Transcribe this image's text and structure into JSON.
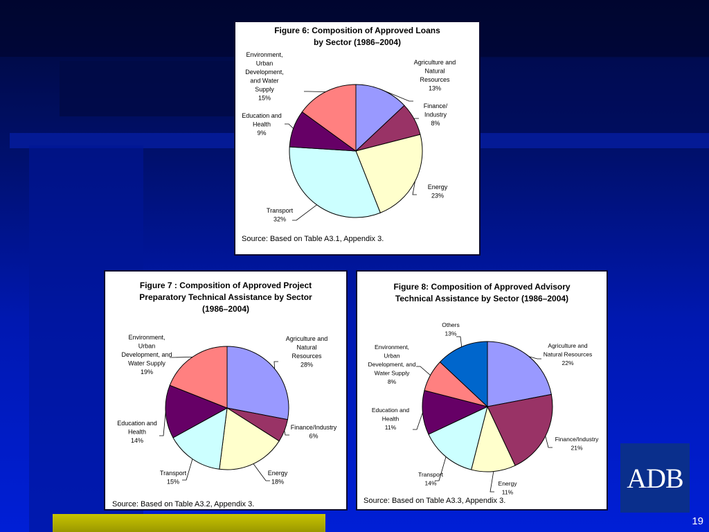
{
  "chart_data": [
    {
      "type": "pie",
      "title": "Figure 6: Composition of Approved Loans by Sector (1986–2004)",
      "title_lines": [
        "Figure 6: Composition of Approved Loans",
        "by Sector  (1986–2004)"
      ],
      "source": "Source: Based on Table A3.1, Appendix 3.",
      "slices": [
        {
          "label_lines": [
            "Agriculture and",
            "Natural",
            "Resources",
            "13%"
          ],
          "value": 13,
          "color": "#9999ff"
        },
        {
          "label_lines": [
            "Finance/",
            "Industry",
            "8%"
          ],
          "value": 8,
          "color": "#993366"
        },
        {
          "label_lines": [
            "Energy",
            "23%"
          ],
          "value": 23,
          "color": "#ffffcc"
        },
        {
          "label_lines": [
            "Transport",
            "32%"
          ],
          "value": 32,
          "color": "#ccffff"
        },
        {
          "label_lines": [
            "Education and",
            "Health",
            "9%"
          ],
          "value": 9,
          "color": "#660066"
        },
        {
          "label_lines": [
            "Environment,",
            "Urban",
            "Development,",
            "and Water",
            "Supply",
            "15%"
          ],
          "value": 15,
          "color": "#ff8080"
        }
      ]
    },
    {
      "type": "pie",
      "title": "Figure 7 : Composition of Approved Project Preparatory Technical Assistance by Sector (1986–2004)",
      "title_lines": [
        "Figure 7 : Composition of Approved Project",
        "Preparatory Technical Assistance by Sector",
        "(1986–2004)"
      ],
      "source": "Source: Based on Table A3.2, Appendix 3.",
      "slices": [
        {
          "label_lines": [
            "Agriculture and",
            "Natural",
            "Resources",
            "28%"
          ],
          "value": 28,
          "color": "#9999ff"
        },
        {
          "label_lines": [
            "Finance/Industry",
            "6%"
          ],
          "value": 6,
          "color": "#993366"
        },
        {
          "label_lines": [
            "Energy",
            "18%"
          ],
          "value": 18,
          "color": "#ffffcc"
        },
        {
          "label_lines": [
            "Transport",
            "15%"
          ],
          "value": 15,
          "color": "#ccffff"
        },
        {
          "label_lines": [
            "Education and",
            "Health",
            "14%"
          ],
          "value": 14,
          "color": "#660066"
        },
        {
          "label_lines": [
            "Environment,",
            "Urban",
            "Development, and",
            "Water Supply",
            "19%"
          ],
          "value": 19,
          "color": "#ff8080"
        }
      ]
    },
    {
      "type": "pie",
      "title": "Figure 8: Composition of Approved Advisory Technical Assistance by Sector (1986–2004)",
      "title_lines": [
        "Figure 8: Composition of Approved Advisory",
        "Technical Assistance by Sector (1986–2004)"
      ],
      "source": "Source: Based on Table A3.3, Appendix 3.",
      "slices": [
        {
          "label_lines": [
            "Agriculture and",
            "Natural Resources",
            "22%"
          ],
          "value": 22,
          "color": "#9999ff"
        },
        {
          "label_lines": [
            "Finance/Industry",
            "21%"
          ],
          "value": 21,
          "color": "#993366"
        },
        {
          "label_lines": [
            "Energy",
            "11%"
          ],
          "value": 11,
          "color": "#ffffcc"
        },
        {
          "label_lines": [
            "Transport",
            "14%"
          ],
          "value": 14,
          "color": "#ccffff"
        },
        {
          "label_lines": [
            "Education and",
            "Health",
            "11%"
          ],
          "value": 11,
          "color": "#660066"
        },
        {
          "label_lines": [
            "Environment,",
            "Urban",
            "Development, and",
            "Water Supply",
            "8%"
          ],
          "value": 8,
          "color": "#ff8080"
        },
        {
          "label_lines": [
            "Others",
            "13%"
          ],
          "value": 13,
          "color": "#0066cc"
        }
      ]
    }
  ],
  "logo": {
    "text": "ADB",
    "background": "#0a2f8c"
  },
  "slide": {
    "page_number": "19"
  },
  "colors": {
    "background_top": "#000836",
    "background_bottom": "#001fd6",
    "footer_bar": "#b8b400"
  }
}
